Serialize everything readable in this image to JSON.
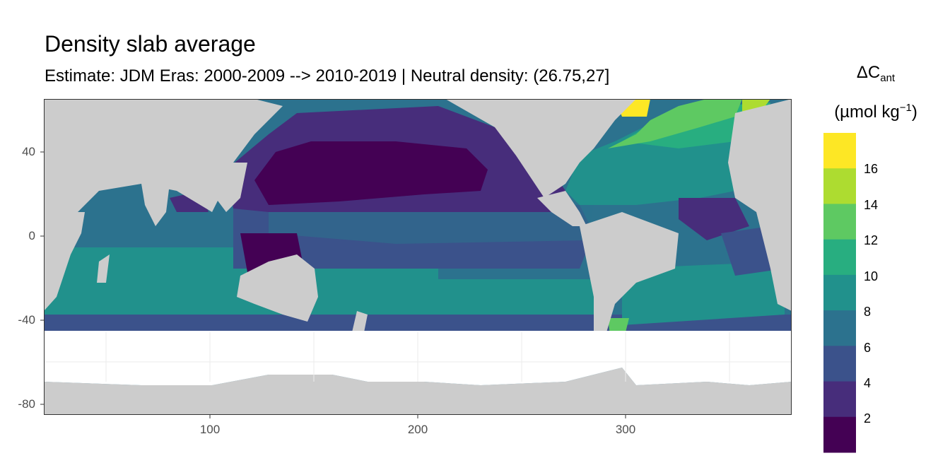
{
  "title": "Density slab average",
  "subtitle": "Estimate: JDM Eras: 2000-2009 --> 2010-2019 | Neutral density: (26.75,27]",
  "legend": {
    "title_main": "ΔC",
    "title_sub": "ant",
    "unit_open": "(µmol kg",
    "unit_sup": "−1",
    "unit_close": ")",
    "ticks": [
      "16",
      "14",
      "12",
      "10",
      "8",
      "6",
      "4",
      "2"
    ],
    "colors": [
      "#fde725",
      "#addc30",
      "#5ec962",
      "#28ae80",
      "#21918c",
      "#2c728e",
      "#3b528b",
      "#472d7b",
      "#440154"
    ]
  },
  "axes": {
    "x_ticks": [
      "100",
      "200",
      "300"
    ],
    "y_ticks": [
      "40",
      "0",
      "-40",
      "-80"
    ],
    "x_range": [
      20,
      380
    ],
    "y_range": [
      -85,
      65
    ]
  },
  "colors": {
    "land": "#cccccc",
    "panel_border": "#333333",
    "grid": "#ebebeb"
  }
}
